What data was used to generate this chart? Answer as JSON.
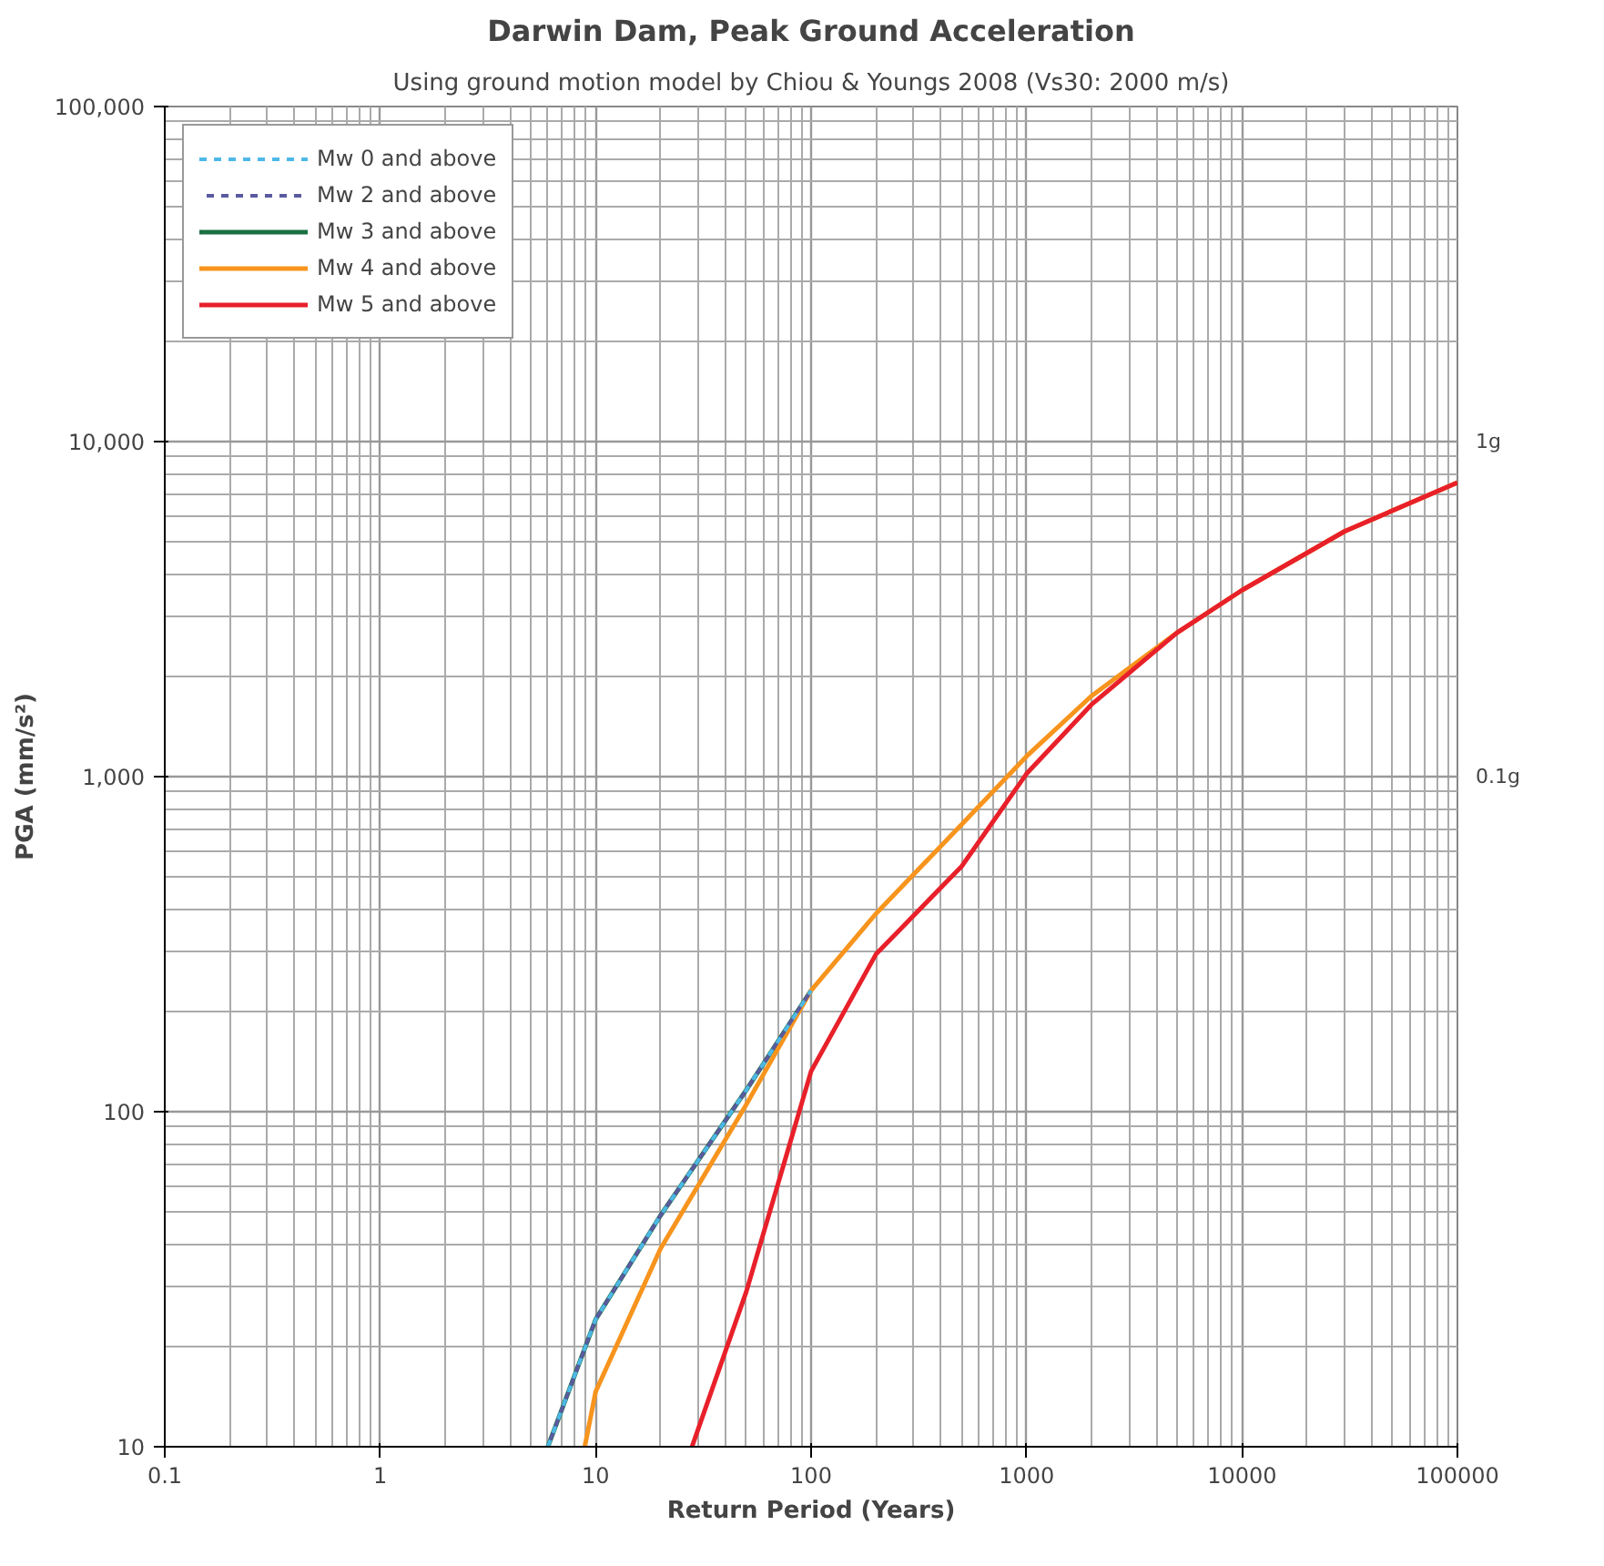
{
  "chart_data": {
    "type": "line",
    "title": "Darwin Dam, Peak Ground Acceleration",
    "subtitle": "Using ground motion model by Chiou & Youngs 2008 (Vs30: 2000 m/s)",
    "xlabel": "Return Period (Years)",
    "ylabel": "PGA (mm/s²)",
    "log": "xy",
    "grid": true,
    "legend": "top left",
    "xlim": [
      0.1,
      100000
    ],
    "ylim": [
      10,
      100000
    ],
    "xticks": [
      0.1,
      1,
      10,
      100,
      1000,
      10000,
      100000
    ],
    "yticks": [
      10,
      100,
      {
        "value": 1000,
        "label": "1,000"
      },
      {
        "value": 10000,
        "label": "10,000"
      },
      {
        "value": 100000,
        "label": "100,000"
      }
    ],
    "annotations": [
      "1g",
      "0.1g"
    ],
    "series": [
      {
        "name": "Mw 0 and above",
        "color": "#4db8e8",
        "line_style": "dashed",
        "x": [
          6,
          10,
          20,
          50,
          100
        ],
        "values": [
          10,
          24,
          49,
          116,
          230
        ]
      },
      {
        "name": "Mw 2 and above",
        "color": "#5a5aa0",
        "line_style": "dashed",
        "x": [
          6,
          10,
          20,
          50,
          100
        ],
        "values": [
          10,
          24,
          49,
          116,
          230
        ]
      },
      {
        "name": "Mw 3 and above",
        "color": "#1a7040",
        "line_style": "solid",
        "x": [
          6,
          10,
          20,
          50,
          100
        ],
        "values": [
          10,
          24,
          49,
          116,
          230
        ]
      },
      {
        "name": "Mw 4 and above",
        "color": "#f7941d",
        "line_style": "solid",
        "x": [
          8.9,
          10,
          20,
          50,
          100,
          200,
          500,
          1000,
          2000,
          5000,
          10000,
          30000,
          100000
        ],
        "values": [
          10,
          14.6,
          39,
          105,
          230,
          390,
          720,
          1150,
          1740,
          2690,
          3600,
          5400,
          7540
        ]
      },
      {
        "name": "Mw 5 and above",
        "color": "#e8202a",
        "line_style": "solid",
        "x": [
          28,
          50,
          100,
          200,
          500,
          1000,
          2000,
          5000,
          10000,
          30000,
          100000
        ],
        "values": [
          10,
          29,
          132,
          295,
          540,
          1020,
          1640,
          2690,
          3600,
          5400,
          7540
        ]
      }
    ]
  }
}
